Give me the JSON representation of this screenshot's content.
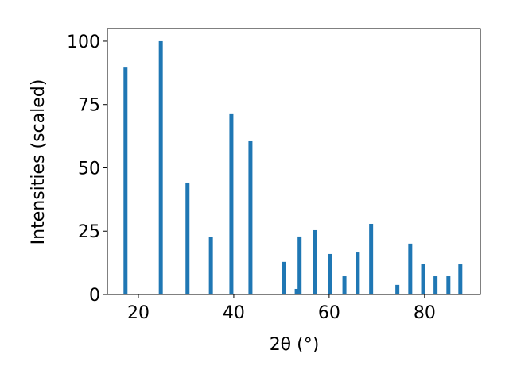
{
  "chart_data": {
    "type": "bar",
    "x": [
      17.3,
      24.7,
      30.3,
      35.2,
      39.5,
      43.5,
      50.5,
      53.2,
      53.8,
      57.0,
      60.2,
      63.2,
      66.0,
      68.8,
      74.3,
      77.0,
      79.7,
      82.3,
      85.0,
      87.5
    ],
    "values": [
      89.6,
      100,
      44.2,
      22.6,
      71.5,
      60.5,
      12.9,
      2.2,
      22.9,
      25.4,
      16,
      7.2,
      16.6,
      27.9,
      3.8,
      20.1,
      12.2,
      7.2,
      7.2,
      11.9
    ],
    "color": "#1f77b4",
    "xlabel": "2θ (°)",
    "ylabel": "Intensities (scaled)",
    "xlim": [
      13.5,
      91.7
    ],
    "ylim": [
      0,
      105
    ],
    "xticks": [
      20,
      40,
      60,
      80
    ],
    "yticks": [
      0,
      25,
      50,
      75,
      100
    ],
    "grid": false
  }
}
